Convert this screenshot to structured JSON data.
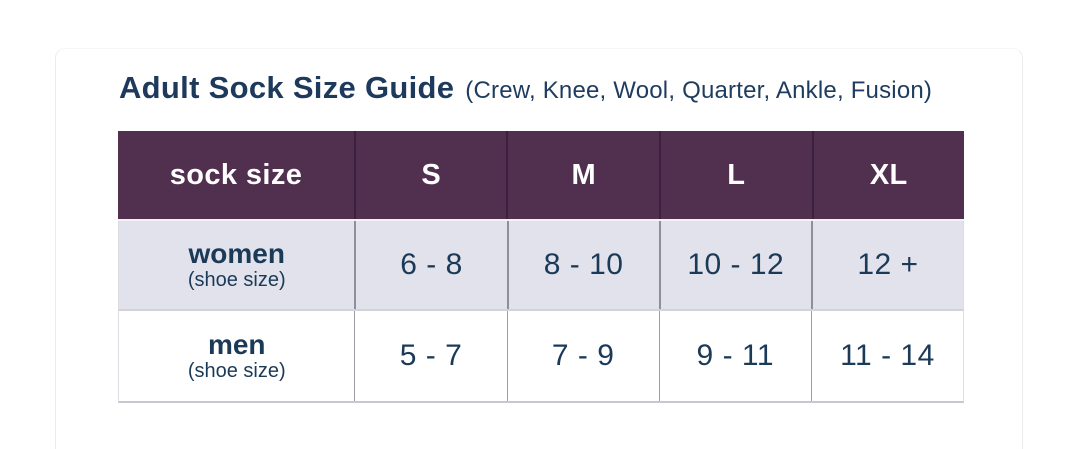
{
  "header": {
    "title": "Adult Sock Size Guide",
    "subtitle": "(Crew, Knee, Wool, Quarter, Ankle, Fusion)"
  },
  "table": {
    "header": [
      "sock size",
      "S",
      "M",
      "L",
      "XL"
    ],
    "rows": [
      {
        "label": "women",
        "sublabel": "(shoe size)",
        "values": [
          "6 - 8",
          "8 - 10",
          "10 - 12",
          "12 +"
        ]
      },
      {
        "label": "men",
        "sublabel": "(shoe size)",
        "values": [
          "5 - 7",
          "7 - 9",
          "9 - 11",
          "11 - 14"
        ]
      }
    ]
  },
  "colors": {
    "header_bg": "#512f4e",
    "header_text": "#ffffff",
    "header_divider": "#3b2040",
    "alt_row_bg": "#e1e2ec",
    "body_text": "#1b3a58",
    "title_text": "#1d3a5c",
    "body_divider": "#8f8f9b",
    "card_border": "#ebecef"
  }
}
